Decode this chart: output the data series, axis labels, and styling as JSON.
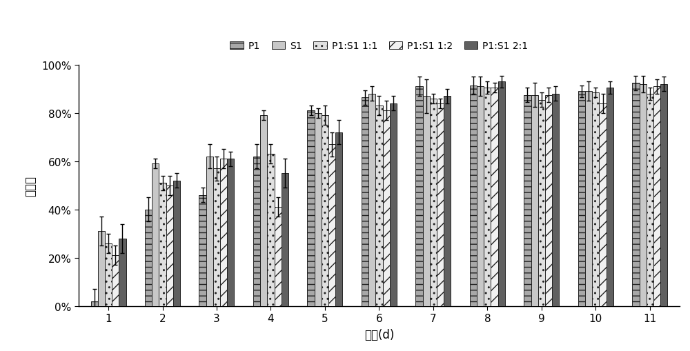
{
  "days": [
    1,
    2,
    3,
    4,
    5,
    6,
    7,
    8,
    9,
    10,
    11
  ],
  "series": {
    "P1": [
      0.02,
      0.4,
      0.46,
      0.62,
      0.81,
      0.865,
      0.91,
      0.915,
      0.875,
      0.89,
      0.925
    ],
    "S1": [
      0.31,
      0.59,
      0.62,
      0.79,
      0.8,
      0.88,
      0.87,
      0.91,
      0.875,
      0.89,
      0.92
    ],
    "P1:S1 1:1": [
      0.26,
      0.51,
      0.57,
      0.63,
      0.79,
      0.83,
      0.86,
      0.905,
      0.855,
      0.885,
      0.88
    ],
    "P1:S1 1:2": [
      0.21,
      0.5,
      0.61,
      0.41,
      0.67,
      0.81,
      0.84,
      0.905,
      0.875,
      0.84,
      0.91
    ],
    "P1:S1 2:1": [
      0.28,
      0.52,
      0.61,
      0.55,
      0.72,
      0.84,
      0.87,
      0.93,
      0.88,
      0.905,
      0.92
    ]
  },
  "errors": {
    "P1": [
      0.05,
      0.05,
      0.03,
      0.05,
      0.02,
      0.03,
      0.04,
      0.035,
      0.03,
      0.025,
      0.03
    ],
    "S1": [
      0.06,
      0.02,
      0.05,
      0.02,
      0.02,
      0.03,
      0.07,
      0.04,
      0.05,
      0.04,
      0.035
    ],
    "P1:S1 1:1": [
      0.04,
      0.03,
      0.05,
      0.04,
      0.04,
      0.04,
      0.02,
      0.025,
      0.03,
      0.02,
      0.025
    ],
    "P1:S1 1:2": [
      0.04,
      0.04,
      0.04,
      0.04,
      0.05,
      0.04,
      0.02,
      0.02,
      0.03,
      0.04,
      0.03
    ],
    "P1:S1 2:1": [
      0.06,
      0.03,
      0.03,
      0.06,
      0.05,
      0.03,
      0.03,
      0.025,
      0.03,
      0.025,
      0.03
    ]
  },
  "series_order": [
    "P1",
    "S1",
    "P1:S1 1:1",
    "P1:S1 1:2",
    "P1:S1 2:1"
  ],
  "colors": {
    "P1": "#a8a8a8",
    "S1": "#c8c8c8",
    "P1:S1 1:1": "#e0e0e0",
    "P1:S1 1:2": "#f0f0f0",
    "P1:S1 2:1": "#606060"
  },
  "hatches": {
    "P1": "--",
    "S1": "",
    "P1:S1 1:1": "..",
    "P1:S1 1:2": "//",
    "P1:S1 2:1": ""
  },
  "edgecolors": {
    "P1": "#222222",
    "S1": "#222222",
    "P1:S1 1:1": "#222222",
    "P1:S1 1:2": "#222222",
    "P1:S1 2:1": "#222222"
  },
  "xlabel": "时间(d)",
  "ylabel": "降解率",
  "ylim": [
    0,
    1.0
  ],
  "yticks": [
    0.0,
    0.2,
    0.4,
    0.6,
    0.8,
    1.0
  ],
  "ytick_labels": [
    "0%",
    "20%",
    "40%",
    "60%",
    "80%",
    "100%"
  ],
  "bar_width": 0.13,
  "legend_fontsize": 10,
  "axis_fontsize": 12,
  "tick_fontsize": 11
}
